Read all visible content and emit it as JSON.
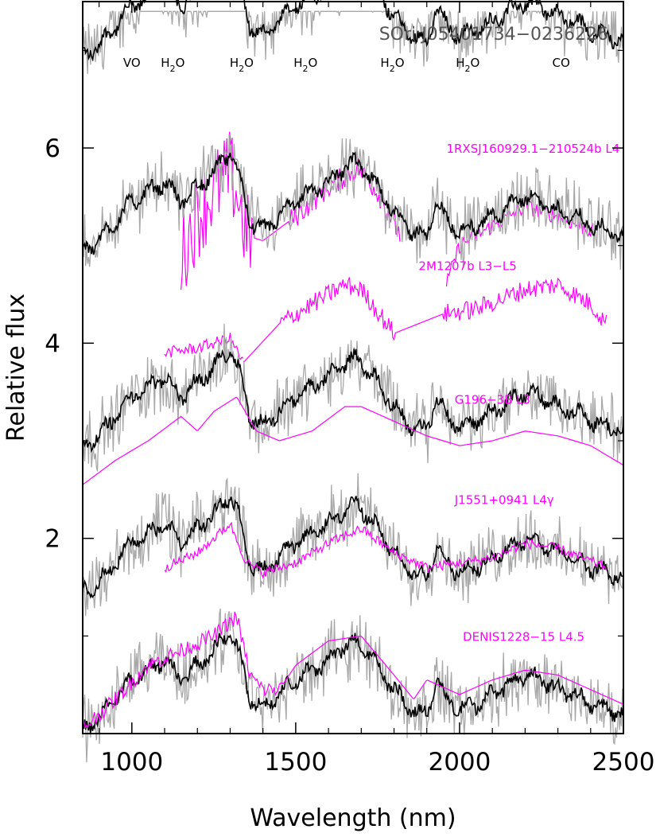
{
  "chart_data": {
    "type": "line",
    "title": "SOri J05401734−0236226",
    "xlabel": "Wavelength (nm)",
    "ylabel": "Relative flux",
    "xlim": [
      850,
      2500
    ],
    "ylim": [
      0,
      7.5
    ],
    "x_ticks": [
      1000,
      1500,
      2000,
      2500
    ],
    "y_ticks": [
      2,
      4,
      6
    ],
    "grid": false,
    "band_labels": [
      {
        "text": "VO",
        "x": 1000
      },
      {
        "text": "H",
        "sub": "2",
        "after": "O",
        "x": 1125
      },
      {
        "text": "H",
        "sub": "2",
        "after": "O",
        "x": 1335
      },
      {
        "text": "H",
        "sub": "2",
        "after": "O",
        "x": 1530
      },
      {
        "text": "H",
        "sub": "2",
        "after": "O",
        "x": 1795
      },
      {
        "text": "H",
        "sub": "2",
        "after": "O",
        "x": 2025
      },
      {
        "text": "CO",
        "x": 2310
      }
    ],
    "colors": {
      "target_raw": "#a8a8a8",
      "target_smooth": "#000000",
      "template": "#ff00ff"
    },
    "series": [
      {
        "name": "1RXSJ160929.1−210524b L4",
        "label_x": 1960,
        "label_y": 5.95,
        "offset": 4.0,
        "template": {
          "knots": [
            [
              1150,
              0.9
            ],
            [
              1200,
              1.3
            ],
            [
              1250,
              1.55
            ],
            [
              1300,
              1.75
            ],
            [
              1320,
              1.55
            ],
            [
              1350,
              1.1
            ],
            [
              1400,
              1.05
            ],
            [
              1500,
              1.3
            ],
            [
              1600,
              1.6
            ],
            [
              1690,
              1.8
            ],
            [
              1750,
              1.55
            ],
            [
              1820,
              1.1
            ],
            [
              1900,
              0.9
            ],
            [
              1960,
              0.6
            ],
            [
              2000,
              1.0
            ],
            [
              2100,
              1.2
            ],
            [
              2200,
              1.4
            ],
            [
              2300,
              1.3
            ],
            [
              2400,
              1.15
            ]
          ],
          "noise": [
            [
              1150,
              1370,
              0.45
            ],
            [
              1480,
              1820,
              0.12
            ],
            [
              1960,
              2410,
              0.08
            ]
          ],
          "segments": [
            [
              1150,
              1820
            ],
            [
              1960,
              2410
            ]
          ]
        }
      },
      {
        "name": "2M1207b L3−L5",
        "label_x": 1875,
        "label_y": 4.75,
        "offset": 2.0,
        "template": {
          "knots": [
            [
              1100,
              1.9
            ],
            [
              1200,
              1.95
            ],
            [
              1300,
              2.05
            ],
            [
              1340,
              1.8
            ],
            [
              1450,
              2.2
            ],
            [
              1550,
              2.4
            ],
            [
              1650,
              2.6
            ],
            [
              1700,
              2.55
            ],
            [
              1800,
              2.1
            ],
            [
              1950,
              2.3
            ],
            [
              2050,
              2.35
            ],
            [
              2200,
              2.55
            ],
            [
              2300,
              2.6
            ],
            [
              2400,
              2.4
            ],
            [
              2450,
              2.2
            ]
          ],
          "noise": [
            [
              1100,
              1340,
              0.06
            ],
            [
              1450,
              1800,
              0.1
            ],
            [
              1950,
              2450,
              0.1
            ]
          ],
          "segments": [
            [
              1100,
              1340
            ],
            [
              1340,
              2450
            ]
          ]
        }
      },
      {
        "name": "G196−3B L3",
        "label_x": 1985,
        "label_y": 3.38,
        "offset": 0.0,
        "template": {
          "knots": [
            [
              850,
              2.55
            ],
            [
              950,
              2.8
            ],
            [
              1050,
              3.0
            ],
            [
              1150,
              3.25
            ],
            [
              1200,
              3.1
            ],
            [
              1250,
              3.3
            ],
            [
              1320,
              3.45
            ],
            [
              1380,
              3.1
            ],
            [
              1450,
              3.0
            ],
            [
              1550,
              3.1
            ],
            [
              1650,
              3.35
            ],
            [
              1700,
              3.35
            ],
            [
              1800,
              3.2
            ],
            [
              1900,
              3.05
            ],
            [
              2000,
              2.95
            ],
            [
              2100,
              3.0
            ],
            [
              2200,
              3.1
            ],
            [
              2300,
              3.05
            ],
            [
              2400,
              2.95
            ],
            [
              2500,
              2.75
            ]
          ],
          "noise": [],
          "segments": [
            [
              850,
              2500
            ]
          ]
        }
      },
      {
        "name": "J1551+0941 L4γ",
        "label_x": 1985,
        "label_y": 2.35,
        "offset": -1.5,
        "template": {
          "knots": [
            [
              1100,
              1.7
            ],
            [
              1200,
              1.85
            ],
            [
              1300,
              2.15
            ],
            [
              1350,
              1.75
            ],
            [
              1400,
              1.65
            ],
            [
              1500,
              1.75
            ],
            [
              1600,
              1.95
            ],
            [
              1700,
              2.1
            ],
            [
              1800,
              1.85
            ],
            [
              1900,
              1.7
            ],
            [
              2000,
              1.75
            ],
            [
              2100,
              1.8
            ],
            [
              2200,
              1.95
            ],
            [
              2300,
              1.9
            ],
            [
              2450,
              1.7
            ]
          ],
          "noise": [
            [
              1100,
              2450,
              0.05
            ]
          ],
          "segments": [
            [
              1100,
              2450
            ]
          ]
        }
      },
      {
        "name": "DENIS1228−15 L4.5",
        "label_x": 2010,
        "label_y": 0.95,
        "offset": -2.9,
        "template": {
          "knots": [
            [
              850,
              0.05
            ],
            [
              950,
              0.35
            ],
            [
              1050,
              0.7
            ],
            [
              1150,
              0.85
            ],
            [
              1250,
              1.0
            ],
            [
              1320,
              1.2
            ],
            [
              1360,
              0.6
            ],
            [
              1400,
              0.45
            ],
            [
              1450,
              0.45
            ],
            [
              1500,
              0.7
            ],
            [
              1600,
              0.95
            ],
            [
              1700,
              1.0
            ],
            [
              1800,
              0.6
            ],
            [
              1860,
              0.35
            ],
            [
              1900,
              0.55
            ],
            [
              2000,
              0.4
            ],
            [
              2100,
              0.55
            ],
            [
              2200,
              0.65
            ],
            [
              2300,
              0.6
            ],
            [
              2400,
              0.45
            ],
            [
              2500,
              0.3
            ]
          ],
          "noise": [
            [
              850,
              1460,
              0.08
            ]
          ],
          "segments": [
            [
              850,
              2500
            ]
          ]
        }
      }
    ],
    "target_shape": [
      [
        850,
        0.95
      ],
      [
        900,
        1.05
      ],
      [
        950,
        1.25
      ],
      [
        1000,
        1.45
      ],
      [
        1050,
        1.55
      ],
      [
        1100,
        1.65
      ],
      [
        1150,
        1.45
      ],
      [
        1200,
        1.6
      ],
      [
        1250,
        1.75
      ],
      [
        1300,
        1.95
      ],
      [
        1330,
        1.7
      ],
      [
        1360,
        1.25
      ],
      [
        1400,
        1.15
      ],
      [
        1450,
        1.3
      ],
      [
        1500,
        1.45
      ],
      [
        1550,
        1.55
      ],
      [
        1600,
        1.65
      ],
      [
        1650,
        1.8
      ],
      [
        1690,
        1.85
      ],
      [
        1750,
        1.6
      ],
      [
        1800,
        1.35
      ],
      [
        1850,
        1.15
      ],
      [
        1900,
        1.1
      ],
      [
        1930,
        1.45
      ],
      [
        1960,
        1.25
      ],
      [
        2000,
        1.15
      ],
      [
        2050,
        1.2
      ],
      [
        2100,
        1.3
      ],
      [
        2150,
        1.4
      ],
      [
        2200,
        1.5
      ],
      [
        2250,
        1.45
      ],
      [
        2300,
        1.35
      ],
      [
        2350,
        1.3
      ],
      [
        2400,
        1.2
      ],
      [
        2450,
        1.15
      ],
      [
        2500,
        1.1
      ]
    ]
  }
}
